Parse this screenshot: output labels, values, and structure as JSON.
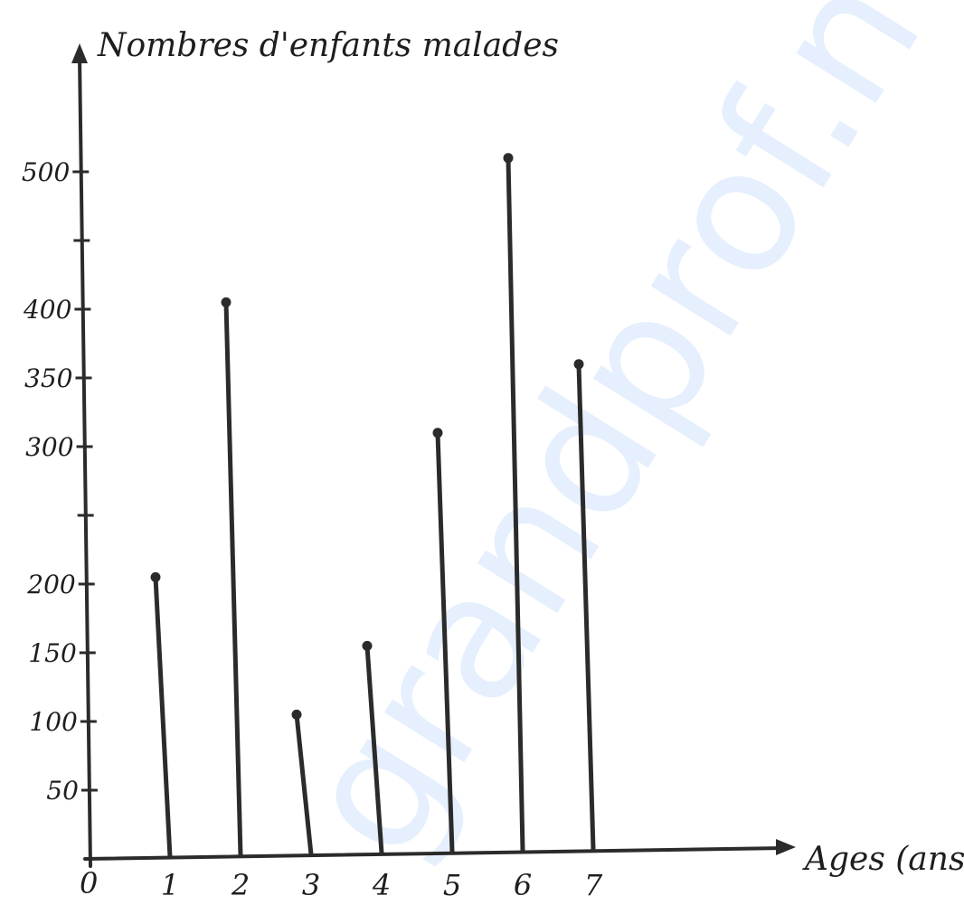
{
  "chart_data": {
    "type": "bar",
    "style": "stem",
    "ylabel": "Nombres d'enfants malades",
    "xlabel": "Ages (ans)",
    "origin_label": "0",
    "categories": [
      "1",
      "2",
      "3",
      "4",
      "5",
      "6",
      "7"
    ],
    "values": [
      205,
      405,
      105,
      155,
      310,
      510,
      360
    ],
    "y_ticks": [
      {
        "value": 50,
        "label": "50"
      },
      {
        "value": 100,
        "label": "100"
      },
      {
        "value": 150,
        "label": "150"
      },
      {
        "value": 200,
        "label": "200"
      },
      {
        "value": 250,
        "label": ""
      },
      {
        "value": 300,
        "label": "300"
      },
      {
        "value": 350,
        "label": "350"
      },
      {
        "value": 400,
        "label": "400"
      },
      {
        "value": 450,
        "label": ""
      },
      {
        "value": 500,
        "label": "500"
      }
    ],
    "ylim": [
      0,
      560
    ],
    "grid": false,
    "legend": "none",
    "color": "#2b2b2b"
  },
  "watermark": {
    "text": "grandprof.net",
    "color": "#3d8cf0"
  }
}
